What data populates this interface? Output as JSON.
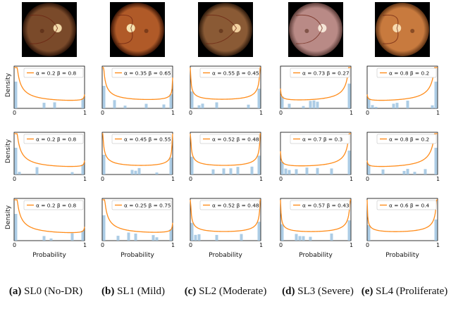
{
  "figure": {
    "ylabel": "Density",
    "xlabel": "Probability",
    "xticks": [
      "0",
      "1"
    ],
    "columns": [
      {
        "tag": "(a)",
        "label": "SL0 (No-DR)",
        "image": "fundus-photo"
      },
      {
        "tag": "(b)",
        "label": "SL1 (Mild)",
        "image": "fundus-photo"
      },
      {
        "tag": "(c)",
        "label": "SL2 (Moderate)",
        "image": "fundus-photo"
      },
      {
        "tag": "(d)",
        "label": "SL3 (Severe)",
        "image": "fundus-photo"
      },
      {
        "tag": "(e)",
        "label": "SL4 (Proliferate)",
        "image": "fundus-photo"
      }
    ],
    "colors": {
      "beta_curve": "#ff8c1a",
      "histogram": "#9ec3e0",
      "axes": "#000000"
    }
  },
  "chart_data": [
    {
      "type": "histogram+line",
      "row": 1,
      "column": "SL0 (No-DR)",
      "legend": "α = 0.2 β = 0.8",
      "alpha": 0.2,
      "beta": 0.8,
      "xlim": [
        0,
        1
      ]
    },
    {
      "type": "histogram+line",
      "row": 1,
      "column": "SL1 (Mild)",
      "legend": "α = 0.35 β = 0.65",
      "alpha": 0.35,
      "beta": 0.65,
      "xlim": [
        0,
        1
      ]
    },
    {
      "type": "histogram+line",
      "row": 1,
      "column": "SL2 (Moderate)",
      "legend": "α = 0.55 β = 0.45",
      "alpha": 0.55,
      "beta": 0.45,
      "xlim": [
        0,
        1
      ]
    },
    {
      "type": "histogram+line",
      "row": 1,
      "column": "SL3 (Severe)",
      "legend": "α = 0.73 β = 0.27",
      "alpha": 0.73,
      "beta": 0.27,
      "xlim": [
        0,
        1
      ]
    },
    {
      "type": "histogram+line",
      "row": 1,
      "column": "SL4 (Proliferate)",
      "legend": "α = 0.8 β = 0.2",
      "alpha": 0.8,
      "beta": 0.2,
      "xlim": [
        0,
        1
      ]
    },
    {
      "type": "histogram+line",
      "row": 2,
      "column": "SL0 (No-DR)",
      "legend": "α = 0.2 β = 0.8",
      "alpha": 0.2,
      "beta": 0.8,
      "xlim": [
        0,
        1
      ]
    },
    {
      "type": "histogram+line",
      "row": 2,
      "column": "SL1 (Mild)",
      "legend": "α = 0.45 β = 0.55",
      "alpha": 0.45,
      "beta": 0.55,
      "xlim": [
        0,
        1
      ]
    },
    {
      "type": "histogram+line",
      "row": 2,
      "column": "SL2 (Moderate)",
      "legend": "α = 0.52 β = 0.48",
      "alpha": 0.52,
      "beta": 0.48,
      "xlim": [
        0,
        1
      ]
    },
    {
      "type": "histogram+line",
      "row": 2,
      "column": "SL3 (Severe)",
      "legend": "α = 0.7 β = 0.3",
      "alpha": 0.7,
      "beta": 0.3,
      "xlim": [
        0,
        1
      ]
    },
    {
      "type": "histogram+line",
      "row": 2,
      "column": "SL4 (Proliferate)",
      "legend": "α = 0.8 β = 0.2",
      "alpha": 0.8,
      "beta": 0.2,
      "xlim": [
        0,
        1
      ]
    },
    {
      "type": "histogram+line",
      "row": 3,
      "column": "SL0 (No-DR)",
      "legend": "α = 0.2 β = 0.8",
      "alpha": 0.2,
      "beta": 0.8,
      "xlim": [
        0,
        1
      ]
    },
    {
      "type": "histogram+line",
      "row": 3,
      "column": "SL1 (Mild)",
      "legend": "α = 0.25 β = 0.75",
      "alpha": 0.25,
      "beta": 0.75,
      "xlim": [
        0,
        1
      ]
    },
    {
      "type": "histogram+line",
      "row": 3,
      "column": "SL2 (Moderate)",
      "legend": "α = 0.52 β = 0.48",
      "alpha": 0.52,
      "beta": 0.48,
      "xlim": [
        0,
        1
      ]
    },
    {
      "type": "histogram+line",
      "row": 3,
      "column": "SL3 (Severe)",
      "legend": "α = 0.57 β = 0.43",
      "alpha": 0.57,
      "beta": 0.43,
      "xlim": [
        0,
        1
      ]
    },
    {
      "type": "histogram+line",
      "row": 3,
      "column": "SL4 (Proliferate)",
      "legend": "α = 0.6 β = 0.4",
      "alpha": 0.6,
      "beta": 0.4,
      "xlim": [
        0,
        1
      ]
    }
  ]
}
